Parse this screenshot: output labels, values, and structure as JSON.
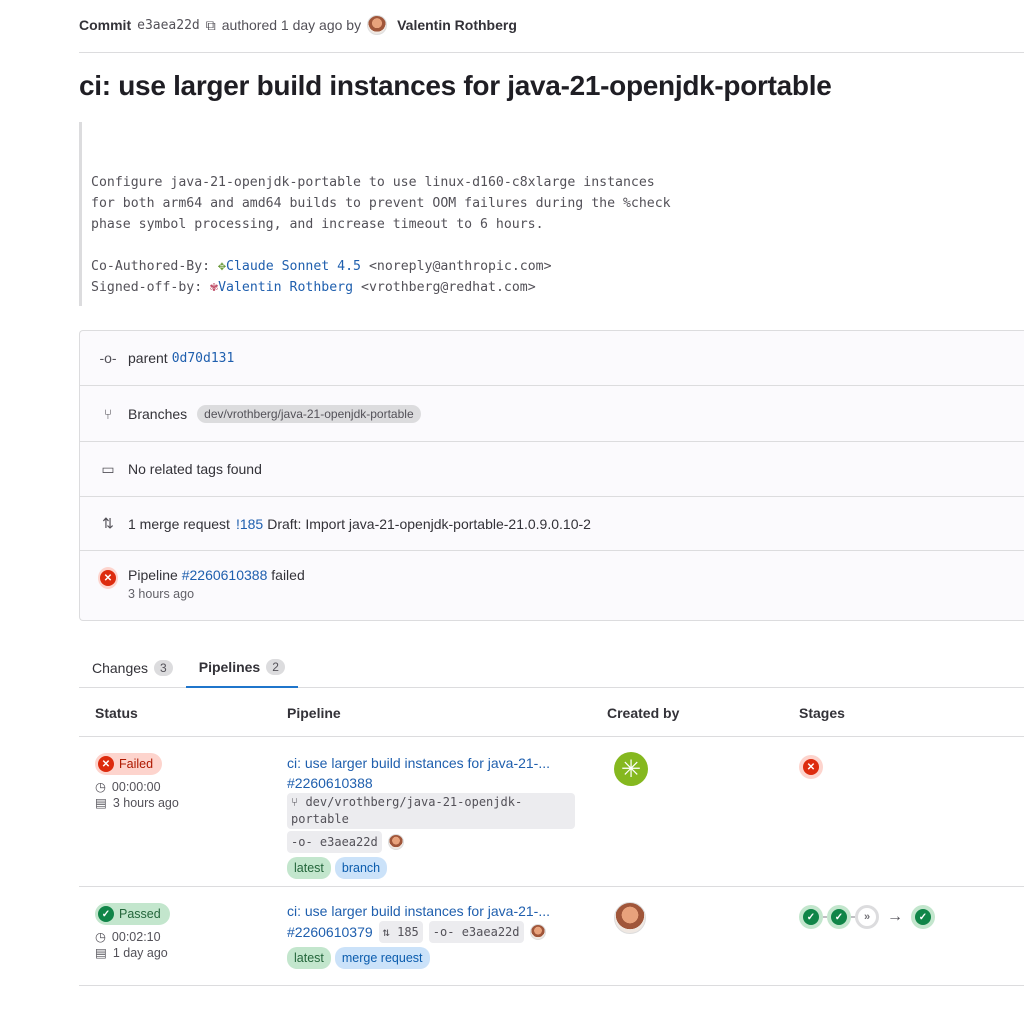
{
  "header": {
    "commit_label": "Commit",
    "sha": "e3aea22d",
    "authored": "authored 1 day ago by",
    "author": "Valentin Rothberg"
  },
  "title": "ci: use larger build instances for java-21-openjdk-portable",
  "message": {
    "lines": [
      "Configure java-21-openjdk-portable to use linux-d160-c8xlarge instances",
      "for both arm64 and amd64 builds to prevent OOM failures during the %check",
      "phase symbol processing, and increase timeout to 6 hours."
    ],
    "coauthor_label": "Co-Authored-By:",
    "coauthor_name": "Claude Sonnet 4.5",
    "coauthor_email": "<noreply@anthropic.com>",
    "signoff_label": "Signed-off-by:",
    "signoff_name": "Valentin Rothberg",
    "signoff_email": "<vrothberg@redhat.com>"
  },
  "info": {
    "parent_label": "parent",
    "parent_sha": "0d70d131",
    "branches_label": "Branches",
    "branch": "dev/vrothberg/java-21-openjdk-portable",
    "tags": "No related tags found",
    "mr_prefix": "1 merge request",
    "mr_id": "!185",
    "mr_title": "Draft: Import java-21-openjdk-portable-21.0.9.0.10-2",
    "pipeline_label": "Pipeline",
    "pipeline_id": "#2260610388",
    "pipeline_status": "failed",
    "pipeline_time": "3 hours ago"
  },
  "tabs": [
    {
      "label": "Changes",
      "count": "3"
    },
    {
      "label": "Pipelines",
      "count": "2",
      "active": true
    }
  ],
  "table": {
    "headers": [
      "Status",
      "Pipeline",
      "Created by",
      "Stages"
    ],
    "rows": [
      {
        "status": "Failed",
        "duration": "00:00:00",
        "time": "3 hours ago",
        "title": "ci: use larger build instances for java-21-...",
        "id": "#2260610388",
        "branch": "dev/vrothberg/java-21-openjdk-portable",
        "sha": "e3aea22d",
        "tags": [
          "latest",
          "branch"
        ],
        "stages": [
          "failed"
        ]
      },
      {
        "status": "Passed",
        "duration": "00:02:10",
        "time": "1 day ago",
        "title": "ci: use larger build instances for java-21-...",
        "id": "#2260610379",
        "mr": "185",
        "sha": "e3aea22d",
        "tags": [
          "latest",
          "merge request"
        ],
        "stages": [
          "success",
          "success",
          "skipped",
          "success"
        ]
      }
    ]
  },
  "colors": {
    "link": "#1f5fae",
    "failed": "#dd2b0e",
    "success": "#108548",
    "tab_active": "#1f75cb"
  }
}
